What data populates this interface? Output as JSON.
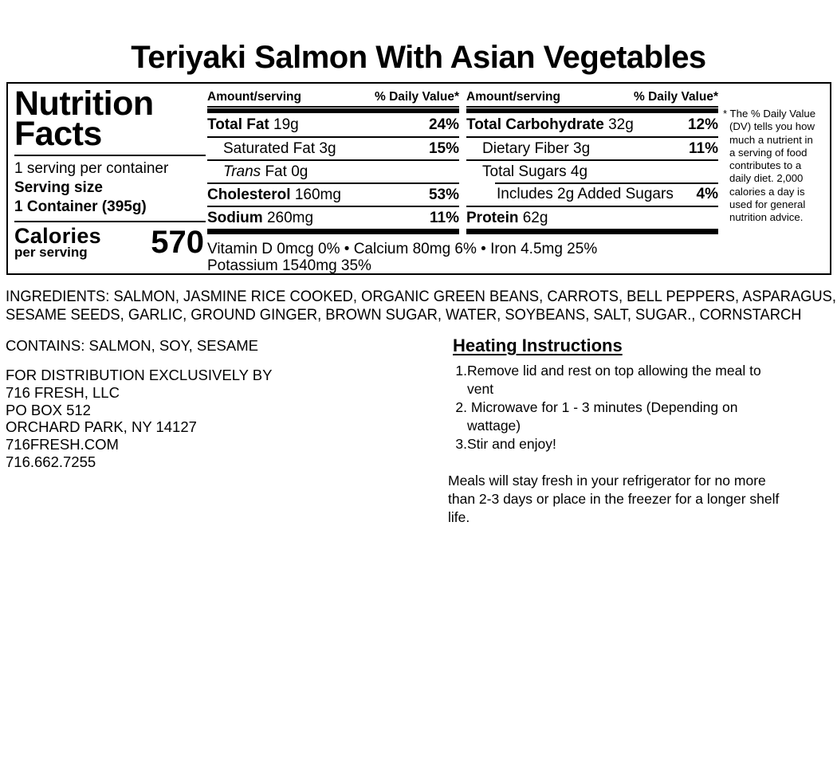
{
  "title": "Teriyaki Salmon With Asian Vegetables",
  "nutrition_panel": {
    "heading_line1": "Nutrition",
    "heading_line2": "Facts",
    "servings_per_container": "1 serving per container",
    "serving_size_label": "Serving size",
    "serving_size_value": "1 Container (395g)",
    "calories_label": "Calories",
    "calories_sublabel": "per serving",
    "calories_value": "570",
    "col_header_amount": "Amount/serving",
    "col_header_dv": "% Daily Value*",
    "left_rows": [
      {
        "name": "Total Fat",
        "value": "19g",
        "pct": "24%"
      },
      {
        "name": "Saturated Fat",
        "value": "3g",
        "pct": "15%"
      },
      {
        "name_italic": "Trans",
        "name": "Fat",
        "value": "0g",
        "pct": ""
      },
      {
        "name": "Cholesterol",
        "value": "160mg",
        "pct": "53%"
      },
      {
        "name": "Sodium",
        "value": "260mg",
        "pct": "11%"
      }
    ],
    "right_rows": [
      {
        "name": "Total Carbohydrate",
        "value": "32g",
        "pct": "12%"
      },
      {
        "name": "Dietary Fiber",
        "value": "3g",
        "pct": "11%"
      },
      {
        "name": "Total Sugars",
        "value": "4g",
        "pct": ""
      },
      {
        "name": "Includes 2g Added Sugars",
        "value": "",
        "pct": "4%"
      },
      {
        "name": "Protein",
        "value": "62g",
        "pct": ""
      }
    ],
    "micronutrients_line1": "Vitamin D 0mcg 0% • Calcium 80mg 6% • Iron 4.5mg 25%",
    "micronutrients_line2": "Potassium 1540mg 35%",
    "footnote": "* The % Daily Value (DV) tells you how much a nutrient in a serving of food contributes to a daily diet. 2,000 calories a day is used for general nutrition advice."
  },
  "ingredients": {
    "line1": "INGREDIENTS: SALMON, JASMINE RICE COOKED, ORGANIC GREEN BEANS, CARROTS, BELL PEPPERS, ASPARAGUS,",
    "line2": "SESAME SEEDS, GARLIC, GROUND GINGER, BROWN SUGAR, WATER, SOYBEANS, SALT, SUGAR., CORNSTARCH"
  },
  "allergens": "CONTAINS: SALMON, SOY, SESAME",
  "distribution": {
    "line1": "FOR DISTRIBUTION EXCLUSIVELY BY",
    "line2": "716 FRESH, LLC",
    "line3": "PO BOX 512",
    "line4": "ORCHARD PARK, NY 14127",
    "line5": "716FRESH.COM",
    "line6": "716.662.7255"
  },
  "heating": {
    "title": "Heating Instructions",
    "steps": [
      {
        "num": "1.",
        "text": "Remove lid and rest on top allowing the meal to vent"
      },
      {
        "num": "2.",
        "text": " Microwave for 1 - 3 minutes (Depending on wattage)"
      },
      {
        "num": "3.",
        "text": "Stir and enjoy!"
      }
    ],
    "note": "Meals will stay fresh in your refrigerator for no more than 2-3 days or place in the freezer for a longer shelf life."
  },
  "colors": {
    "text": "#000000",
    "background": "#ffffff"
  }
}
